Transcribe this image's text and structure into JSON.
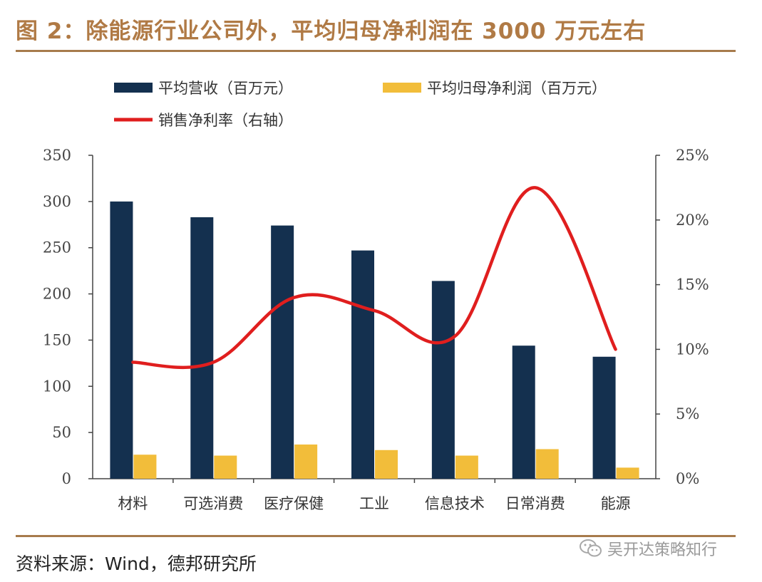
{
  "header": {
    "title": "图 2：除能源行业公司外，平均归母净利润在 3000 万元左右"
  },
  "footer": {
    "source": "资料来源：Wind，德邦研究所"
  },
  "watermark": {
    "text": "吴开达策略知行"
  },
  "colors": {
    "title": "#b07a45",
    "rule": "#a77b4c",
    "revenue": "#14304f",
    "profit": "#f2bd3a",
    "margin": "#e01e1e"
  },
  "chart_data": {
    "type": "bar",
    "title": "除能源行业公司外，平均归母净利润在 3000 万元左右",
    "categories": [
      "材料",
      "可选消费",
      "医疗保健",
      "工业",
      "信息技术",
      "日常消费",
      "能源"
    ],
    "series": [
      {
        "name": "平均营收（百万元）",
        "type": "bar",
        "axis": "left",
        "color": "#14304f",
        "values": [
          300,
          283,
          274,
          247,
          214,
          144,
          132
        ]
      },
      {
        "name": "平均归母净利润（百万元）",
        "type": "bar",
        "axis": "left",
        "color": "#f2bd3a",
        "values": [
          26,
          25,
          37,
          31,
          25,
          32,
          12
        ]
      },
      {
        "name": "销售净利率（右轴）",
        "type": "line",
        "axis": "right",
        "color": "#e01e1e",
        "values": [
          9.0,
          9.0,
          14.0,
          13.0,
          11.0,
          22.5,
          10.0
        ]
      }
    ],
    "left_axis": {
      "ylim": [
        0,
        350
      ],
      "ticks": [
        "0",
        "50",
        "100",
        "150",
        "200",
        "250",
        "300",
        "350"
      ]
    },
    "right_axis": {
      "ylim": [
        0,
        25
      ],
      "ticks": [
        "0%",
        "5%",
        "10%",
        "15%",
        "20%",
        "25%"
      ]
    },
    "legend": [
      "平均营收（百万元）",
      "平均归母净利润（百万元）",
      "销售净利率（右轴）"
    ],
    "legend_position": "top-left",
    "grid": false
  }
}
